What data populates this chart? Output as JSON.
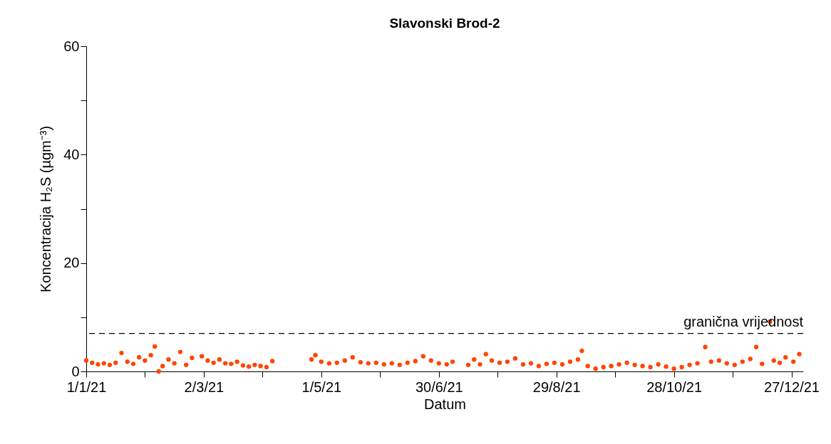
{
  "chart_data": {
    "type": "scatter",
    "title": "Slavonski Brod-2",
    "xlabel": "Datum",
    "ylabel": "Koncentracija H₂S (µgm⁻³)",
    "marker": "circle",
    "grid": false,
    "xlim": [
      "2021-01-01",
      "2022-01-02"
    ],
    "xticks": [
      {
        "value": "2021-01-01",
        "label": "1/1/21"
      },
      {
        "value": "2021-01-31",
        "label": null
      },
      {
        "value": "2021-03-02",
        "label": "2/3/21"
      },
      {
        "value": "2021-04-01",
        "label": null
      },
      {
        "value": "2021-05-01",
        "label": "1/5/21"
      },
      {
        "value": "2021-05-31",
        "label": null
      },
      {
        "value": "2021-06-30",
        "label": "30/6/21"
      },
      {
        "value": "2021-07-30",
        "label": null
      },
      {
        "value": "2021-08-29",
        "label": "29/8/21"
      },
      {
        "value": "2021-09-28",
        "label": null
      },
      {
        "value": "2021-10-28",
        "label": "28/10/21"
      },
      {
        "value": "2021-11-27",
        "label": null
      },
      {
        "value": "2021-12-27",
        "label": "27/12/21"
      }
    ],
    "ylim": [
      0,
      60
    ],
    "yticks": [
      0,
      {
        "value": 10,
        "label": null
      },
      20,
      {
        "value": 30,
        "label": null
      },
      40,
      {
        "value": 50,
        "label": null
      },
      60
    ],
    "ref_lines": [
      {
        "axis": "y",
        "value": 7,
        "label": "granična vrijednost",
        "color": "#000000",
        "line_style": "dashed"
      }
    ],
    "series": [
      {
        "color": "#ff4500",
        "x": [
          "2021-01-01",
          "2021-01-04",
          "2021-01-07",
          "2021-01-10",
          "2021-01-13",
          "2021-01-16",
          "2021-01-19",
          "2021-01-22",
          "2021-01-25",
          "2021-01-28",
          "2021-01-31",
          "2021-02-03",
          "2021-02-05",
          "2021-02-07",
          "2021-02-09",
          "2021-02-12",
          "2021-02-15",
          "2021-02-18",
          "2021-02-21",
          "2021-02-24",
          "2021-03-01",
          "2021-03-04",
          "2021-03-07",
          "2021-03-10",
          "2021-03-13",
          "2021-03-16",
          "2021-03-19",
          "2021-03-22",
          "2021-03-25",
          "2021-03-28",
          "2021-03-31",
          "2021-04-03",
          "2021-04-06",
          "2021-04-26",
          "2021-04-28",
          "2021-05-01",
          "2021-05-05",
          "2021-05-09",
          "2021-05-13",
          "2021-05-17",
          "2021-05-21",
          "2021-05-25",
          "2021-05-29",
          "2021-06-02",
          "2021-06-06",
          "2021-06-10",
          "2021-06-14",
          "2021-06-18",
          "2021-06-22",
          "2021-06-26",
          "2021-06-30",
          "2021-07-04",
          "2021-07-07",
          "2021-07-15",
          "2021-07-18",
          "2021-07-21",
          "2021-07-24",
          "2021-07-27",
          "2021-07-31",
          "2021-08-04",
          "2021-08-08",
          "2021-08-12",
          "2021-08-16",
          "2021-08-20",
          "2021-08-24",
          "2021-08-28",
          "2021-09-01",
          "2021-09-05",
          "2021-09-09",
          "2021-09-11",
          "2021-09-14",
          "2021-09-18",
          "2021-09-22",
          "2021-09-26",
          "2021-09-30",
          "2021-10-04",
          "2021-10-08",
          "2021-10-12",
          "2021-10-16",
          "2021-10-20",
          "2021-10-24",
          "2021-10-28",
          "2021-11-01",
          "2021-11-05",
          "2021-11-09",
          "2021-11-13",
          "2021-11-16",
          "2021-11-20",
          "2021-11-24",
          "2021-11-28",
          "2021-12-02",
          "2021-12-06",
          "2021-12-09",
          "2021-12-12",
          "2021-12-16",
          "2021-12-18",
          "2021-12-21",
          "2021-12-24",
          "2021-12-28",
          "2021-12-31"
        ],
        "values": [
          2.0,
          1.6,
          1.3,
          1.5,
          1.2,
          1.6,
          3.4,
          1.8,
          1.4,
          2.6,
          2.0,
          3.0,
          4.6,
          0.0,
          1.0,
          2.2,
          1.5,
          3.6,
          1.2,
          2.5,
          2.8,
          2.0,
          1.6,
          2.2,
          1.5,
          1.4,
          1.8,
          1.1,
          0.9,
          1.2,
          1.0,
          0.8,
          1.9,
          2.2,
          3.0,
          1.8,
          1.5,
          1.6,
          2.0,
          2.6,
          1.7,
          1.5,
          1.6,
          1.3,
          1.5,
          1.2,
          1.6,
          1.9,
          2.8,
          2.0,
          1.5,
          1.3,
          1.8,
          1.2,
          2.2,
          1.3,
          3.2,
          2.0,
          1.6,
          1.8,
          2.4,
          1.3,
          1.5,
          1.0,
          1.4,
          1.6,
          1.3,
          1.8,
          2.2,
          3.8,
          1.0,
          0.5,
          0.8,
          1.0,
          1.3,
          1.6,
          1.2,
          1.0,
          0.8,
          1.3,
          0.9,
          0.5,
          0.8,
          1.2,
          1.5,
          4.5,
          1.8,
          2.0,
          1.5,
          1.2,
          1.8,
          2.3,
          4.5,
          1.4,
          9.2,
          2.0,
          1.6,
          2.6,
          1.8,
          3.2
        ]
      }
    ]
  }
}
